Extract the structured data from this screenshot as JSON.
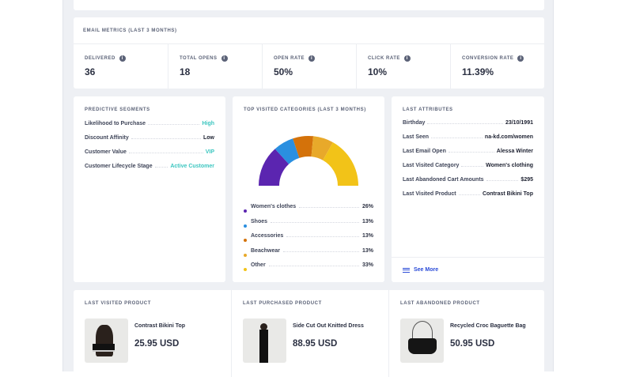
{
  "email_metrics": {
    "title": "Email Metrics (Last 3 Months)",
    "metrics": [
      {
        "label": "DELIVERED",
        "value": "36"
      },
      {
        "label": "TOTAL OPENS",
        "value": "18"
      },
      {
        "label": "OPEN RATE",
        "value": "50%"
      },
      {
        "label": "CLICK RATE",
        "value": "10%"
      },
      {
        "label": "CONVERSION RATE",
        "value": "11.39%"
      }
    ]
  },
  "predictive": {
    "title": "Predictive Segments",
    "rows": [
      {
        "k": "Likelihood to Purchase",
        "v": "High"
      },
      {
        "k": "Discount Affinity",
        "v": "Low"
      },
      {
        "k": "Customer Value",
        "v": "VIP"
      },
      {
        "k": "Customer Lifecycle Stage",
        "v": "Active Customer"
      }
    ]
  },
  "chart_data": {
    "type": "pie",
    "title": "Top Visited Categories (Last 3 Months)",
    "categories": [
      "Women's clothes",
      "Shoes",
      "Accessories",
      "Beachwear",
      "Other"
    ],
    "values": [
      26,
      13,
      13,
      13,
      33
    ],
    "labels": [
      "26%",
      "13%",
      "13%",
      "13%",
      "33%"
    ],
    "colors": [
      "#5b25b0",
      "#2a8fe0",
      "#d4720a",
      "#e8a92a",
      "#f2c318"
    ],
    "shape": "half-donut",
    "legend": "bottom"
  },
  "attributes": {
    "title": "Last Attributes",
    "rows": [
      {
        "k": "Birthday",
        "v": "23/10/1991"
      },
      {
        "k": "Last Seen",
        "v": "na-kd.com/women"
      },
      {
        "k": "Last Email Open",
        "v": "Alessa Winter"
      },
      {
        "k": "Last Visited Category",
        "v": "Women's clothing"
      },
      {
        "k": "Last Abandoned Cart Amounts",
        "v": "$295"
      },
      {
        "k": "Last Visited Product",
        "v": "Contrast Bikini Top"
      }
    ],
    "see_more": "See More"
  },
  "products": [
    {
      "title": "Last Visited Product",
      "name": "Contrast Bikini Top",
      "price": "25.95 USD"
    },
    {
      "title": "Last Purchased Product",
      "name": "Side Cut Out Knitted Dress",
      "price": "88.95 USD"
    },
    {
      "title": "Last Abandoned Product",
      "name": "Recycled Croc Baguette Bag",
      "price": "50.95 USD"
    }
  ]
}
